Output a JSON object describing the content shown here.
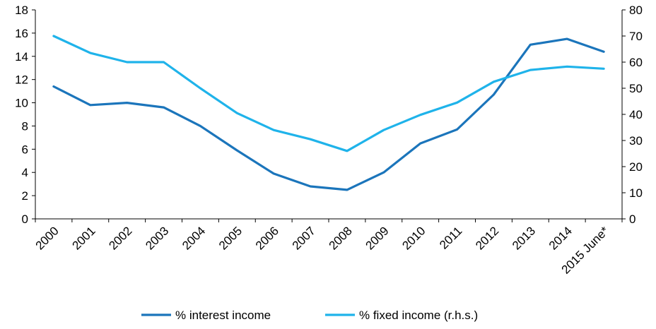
{
  "chart_data": {
    "type": "line",
    "categories": [
      "2000",
      "2001",
      "2002",
      "2003",
      "2004",
      "2005",
      "2006",
      "2007",
      "2008",
      "2009",
      "2010",
      "2011",
      "2012",
      "2013",
      "2014",
      "2015 June*"
    ],
    "series": [
      {
        "name": "% interest income",
        "axis": "left",
        "color": "#1b75bb",
        "values": [
          11.4,
          9.8,
          10.0,
          9.6,
          8.0,
          5.9,
          3.9,
          2.8,
          2.5,
          4.0,
          6.5,
          7.7,
          10.7,
          15.0,
          15.5,
          14.4
        ]
      },
      {
        "name": "% fixed income (r.h.s.)",
        "axis": "right",
        "color": "#1fb3ea",
        "values": [
          70,
          63.5,
          60,
          60,
          50,
          40.5,
          34,
          30.5,
          26,
          34,
          39.8,
          44.5,
          52.5,
          57,
          58.3,
          57.5
        ]
      }
    ],
    "y_left": {
      "min": 0,
      "max": 18,
      "ticks": [
        "0",
        "2",
        "4",
        "6",
        "8",
        "10",
        "12",
        "14",
        "16",
        "18"
      ]
    },
    "y_right": {
      "min": 0,
      "max": 80,
      "ticks": [
        "0",
        "10",
        "20",
        "30",
        "40",
        "50",
        "60",
        "70",
        "80"
      ]
    },
    "grid": false,
    "legend_position": "bottom"
  }
}
